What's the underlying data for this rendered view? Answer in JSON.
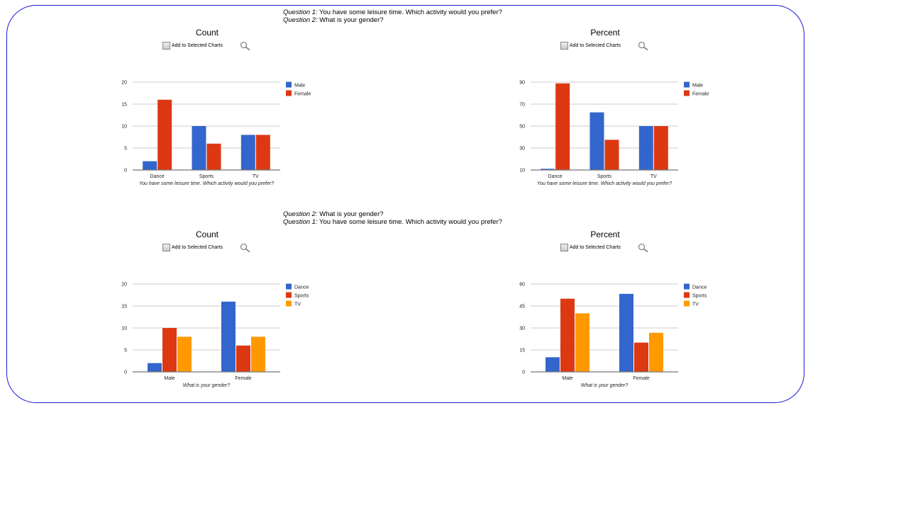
{
  "group1": {
    "q_first_label": "Question 1:",
    "q_first_text": " You have some leisure time. Which activity would you prefer?",
    "q_second_label": "Question 2:",
    "q_second_text": " What is your gender?"
  },
  "group2": {
    "q_first_label": "Question 2:",
    "q_first_text": " What is your gender?",
    "q_second_label": "Question 1:",
    "q_second_text": " You have some leisure time. Which activity would you prefer?"
  },
  "add_to_selected_label": "Add to Selected Charts",
  "colors": {
    "blue": "#3366cc",
    "red": "#dc3912",
    "orange": "#ff9900",
    "frame": "#1a1adb"
  },
  "icons": {
    "zoom": "magnifier-icon"
  },
  "chart_data": [
    {
      "type": "bar",
      "title": "Count",
      "categories": [
        "Dance",
        "Sports",
        "TV"
      ],
      "xlabel": "You have some leisure time. Which activity would you prefer?",
      "ylabel": "",
      "ylim": [
        0,
        20
      ],
      "yticks": [
        0,
        5,
        10,
        15,
        20
      ],
      "grid": true,
      "legend": "right",
      "series": [
        {
          "name": "Male",
          "color": "#3366cc",
          "values": [
            2,
            10,
            8
          ]
        },
        {
          "name": "Female",
          "color": "#dc3912",
          "values": [
            16,
            6,
            8
          ]
        }
      ]
    },
    {
      "type": "bar",
      "title": "Percent",
      "categories": [
        "Dance",
        "Sports",
        "TV"
      ],
      "xlabel": "You have some leisure time. Which activity would you prefer?",
      "ylabel": "",
      "ylim": [
        10,
        90
      ],
      "yticks": [
        10,
        30,
        50,
        70,
        90
      ],
      "grid": true,
      "legend": "right",
      "series": [
        {
          "name": "Male",
          "color": "#3366cc",
          "values": [
            11.1,
            62.5,
            50
          ]
        },
        {
          "name": "Female",
          "color": "#dc3912",
          "values": [
            88.9,
            37.5,
            50
          ]
        }
      ]
    },
    {
      "type": "bar",
      "title": "Count",
      "categories": [
        "Male",
        "Female"
      ],
      "xlabel": "What is your gender?",
      "ylabel": "",
      "ylim": [
        0,
        20
      ],
      "yticks": [
        0,
        5,
        10,
        15,
        20
      ],
      "grid": true,
      "legend": "right",
      "series": [
        {
          "name": "Dance",
          "color": "#3366cc",
          "values": [
            2,
            16
          ]
        },
        {
          "name": "Sports",
          "color": "#dc3912",
          "values": [
            10,
            6
          ]
        },
        {
          "name": "TV",
          "color": "#ff9900",
          "values": [
            8,
            8
          ]
        }
      ]
    },
    {
      "type": "bar",
      "title": "Percent",
      "categories": [
        "Male",
        "Female"
      ],
      "xlabel": "What is your gender?",
      "ylabel": "",
      "ylim": [
        0,
        60
      ],
      "yticks": [
        0,
        15,
        30,
        45,
        60
      ],
      "grid": true,
      "legend": "right",
      "series": [
        {
          "name": "Dance",
          "color": "#3366cc",
          "values": [
            10,
            53.3
          ]
        },
        {
          "name": "Sports",
          "color": "#dc3912",
          "values": [
            50,
            20
          ]
        },
        {
          "name": "TV",
          "color": "#ff9900",
          "values": [
            40,
            26.7
          ]
        }
      ]
    }
  ]
}
